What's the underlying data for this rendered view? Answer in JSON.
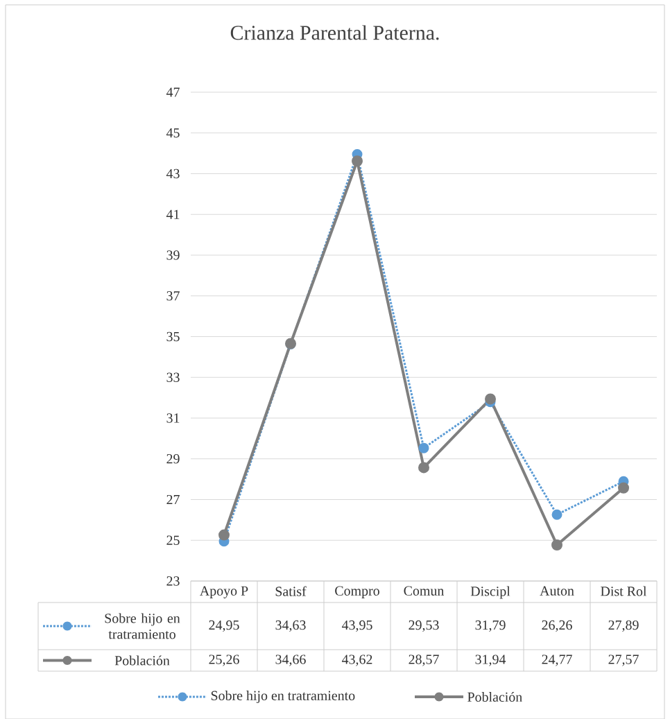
{
  "chart_data": {
    "type": "line",
    "title": "Crianza Parental Paterna.",
    "categories": [
      "Apoyo P",
      "Satisf",
      "Compro",
      "Comun",
      "Discipl",
      "Auton",
      "Dist Rol"
    ],
    "series": [
      {
        "name": "Sobre hijo en tratramiento",
        "color": "#5b9bd5",
        "line_style": "dotted",
        "values": [
          24.95,
          34.63,
          43.95,
          29.53,
          31.79,
          26.26,
          27.89
        ],
        "value_labels": [
          "24,95",
          "34,63",
          "43,95",
          "29,53",
          "31,79",
          "26,26",
          "27,89"
        ]
      },
      {
        "name": "Población",
        "color": "#7f7f7f",
        "line_style": "solid",
        "values": [
          25.26,
          34.66,
          43.62,
          28.57,
          31.94,
          24.77,
          27.57
        ],
        "value_labels": [
          "25,26",
          "34,66",
          "43,62",
          "28,57",
          "31,94",
          "24,77",
          "27,57"
        ]
      }
    ],
    "ylim": [
      23,
      47
    ],
    "yticks": [
      23,
      25,
      27,
      29,
      31,
      33,
      35,
      37,
      39,
      41,
      43,
      45,
      47
    ],
    "grid": "y",
    "legend": "bottom",
    "marker": "circle"
  }
}
